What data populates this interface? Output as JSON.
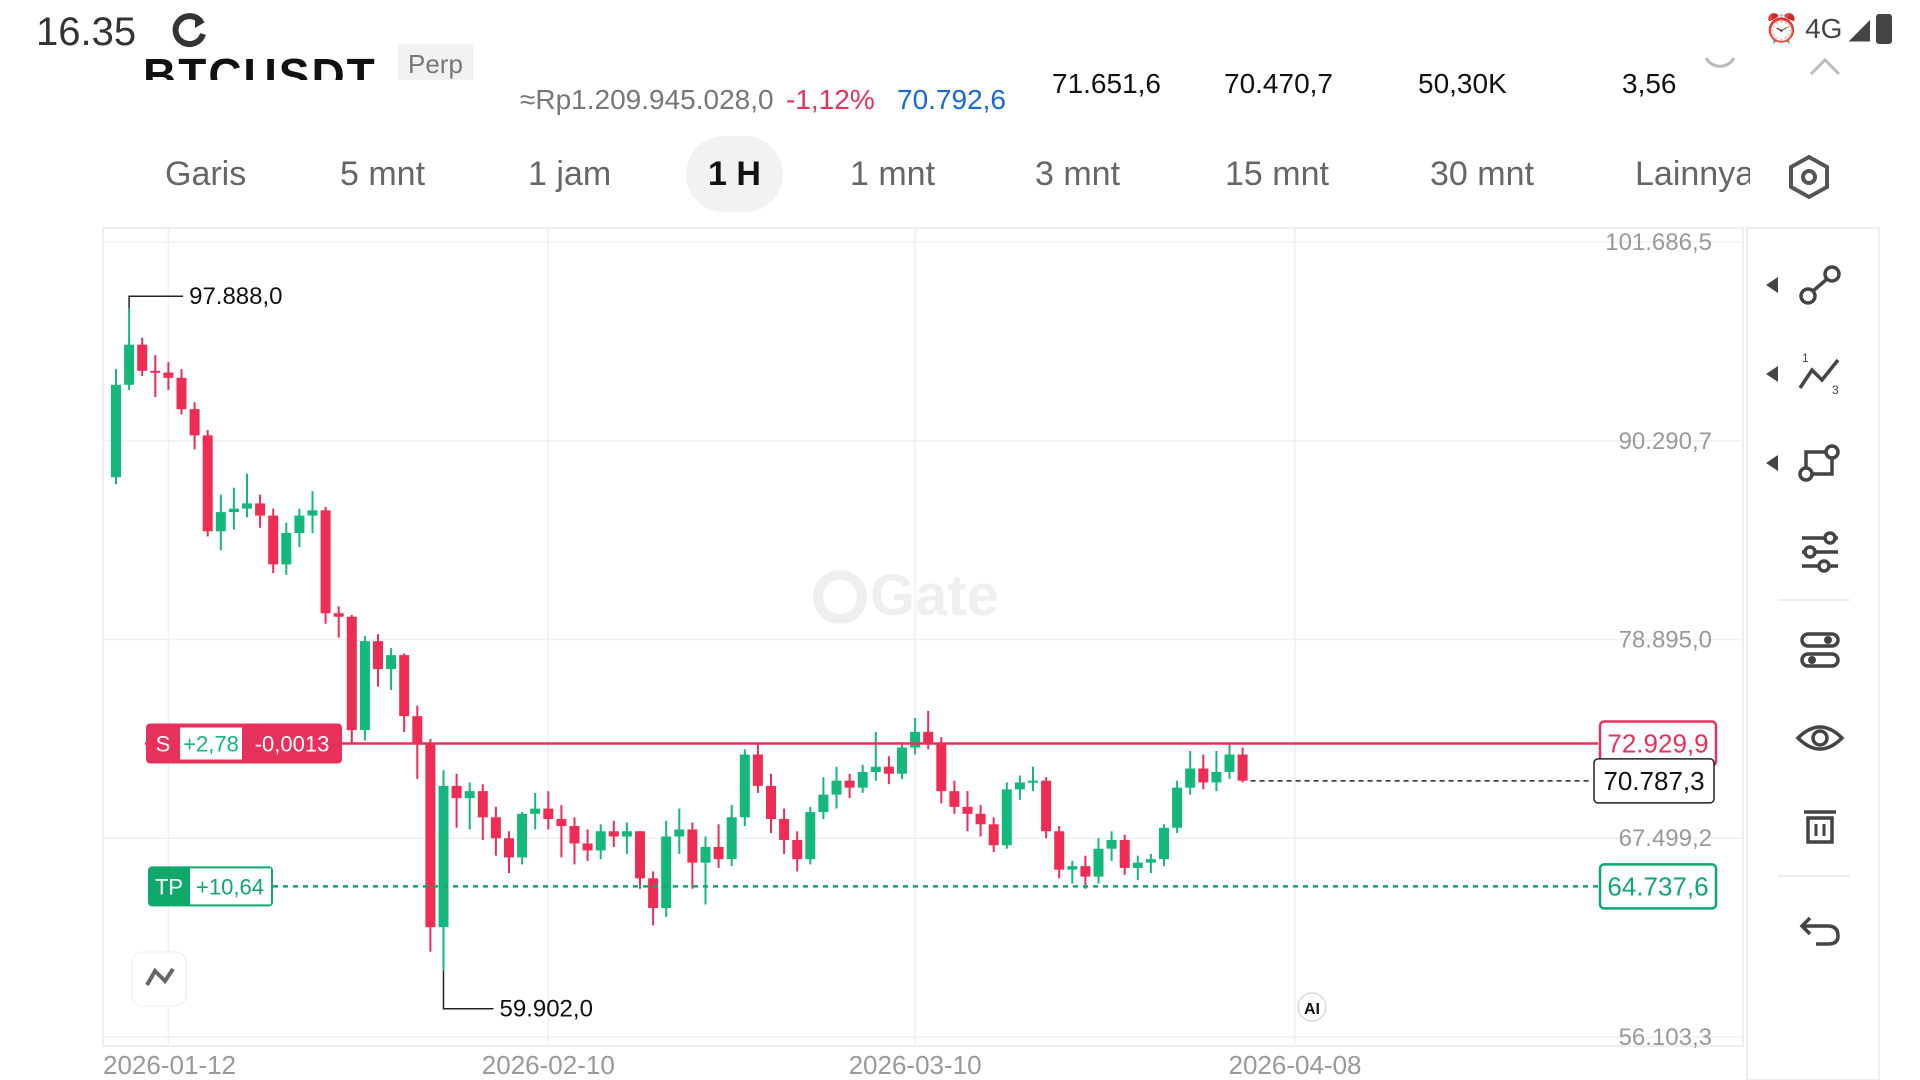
{
  "status_bar": {
    "time": "16.35",
    "network": "4G"
  },
  "header": {
    "pair": "BTCUSDT",
    "contract_type": "Perp",
    "idr_price": "≈Rp1.209.945.028,0",
    "change_pct": "-1,12%",
    "mark_price": "70.792,6",
    "high_24h": "71.651,6",
    "low_24h": "70.470,7",
    "volume": "50,30K",
    "turnover": "3,56"
  },
  "tabs": [
    {
      "label": "Garis"
    },
    {
      "label": "5 mnt"
    },
    {
      "label": "1 jam"
    },
    {
      "label": "1 H",
      "active": true
    },
    {
      "label": "1 mnt"
    },
    {
      "label": "3 mnt"
    },
    {
      "label": "15 mnt"
    },
    {
      "label": "30 mnt"
    },
    {
      "label": "Lainnya"
    }
  ],
  "toolbar_icons": [
    "trendline-icon",
    "wave-icon",
    "rectangle-tool-icon",
    "indicator-settings-icon",
    "layout-icon",
    "visibility-eye-icon",
    "trash-icon",
    "undo-icon"
  ],
  "chart_data": {
    "type": "candlestick",
    "watermark": "Gate",
    "y_ticks": [
      "101.686,5",
      "90.290,7",
      "78.895,0",
      "67.499,2",
      "56.103,3"
    ],
    "y_tick_values": [
      101686.5,
      90290.7,
      78895.0,
      67499.2,
      56103.3
    ],
    "ylim": [
      56103.3,
      101686.5
    ],
    "x_ticks": [
      "2026-01-12",
      "2026-02-10",
      "2026-03-10",
      "2026-04-08"
    ],
    "x_tick_index": [
      4,
      33,
      61,
      90
    ],
    "max_label": "97.888,0",
    "min_label": "59.902,0",
    "max_value": 97888.0,
    "min_value": 59902.0,
    "current_price": "70.787,3",
    "current_value": 70787.3,
    "short_position": {
      "label": "S",
      "pnl": "+2,78",
      "size": "-0,0013",
      "price": "72.929,9",
      "value": 72929.9
    },
    "take_profit": {
      "label": "TP",
      "pnl": "+10,64",
      "price": "64.737,6",
      "value": 64737.6
    },
    "ai_badge": "AI",
    "colors": {
      "up": "#13b87a",
      "down": "#ee2d55",
      "tp": "#0fa86b",
      "short": "#e8315a"
    },
    "candles": [
      [
        88200,
        94400,
        87800,
        93500
      ],
      [
        93500,
        97888,
        93200,
        95800
      ],
      [
        95800,
        96200,
        94000,
        94300
      ],
      [
        94300,
        95200,
        92800,
        94200
      ],
      [
        94200,
        94800,
        93200,
        93900
      ],
      [
        93900,
        94400,
        91800,
        92100
      ],
      [
        92100,
        92500,
        89800,
        90600
      ],
      [
        90600,
        90900,
        84800,
        85100
      ],
      [
        85100,
        87200,
        84000,
        86200
      ],
      [
        86200,
        87600,
        85200,
        86400
      ],
      [
        86400,
        88400,
        85900,
        86700
      ],
      [
        86700,
        87200,
        85300,
        86000
      ],
      [
        86000,
        86400,
        82700,
        83200
      ],
      [
        83200,
        85600,
        82600,
        85000
      ],
      [
        85000,
        86400,
        84200,
        86000
      ],
      [
        86000,
        87400,
        85000,
        86300
      ],
      [
        86300,
        86500,
        79800,
        80400
      ],
      [
        80400,
        80800,
        79000,
        80200
      ],
      [
        80200,
        80300,
        72900,
        73700
      ],
      [
        73700,
        79100,
        73100,
        78800
      ],
      [
        78800,
        79200,
        76200,
        77200
      ],
      [
        77200,
        78400,
        76000,
        78000
      ],
      [
        78000,
        78100,
        73600,
        74500
      ],
      [
        74500,
        75100,
        70900,
        72900
      ],
      [
        72900,
        73200,
        61000,
        62400
      ],
      [
        62400,
        71400,
        59902,
        70500
      ],
      [
        70500,
        71200,
        68100,
        69800
      ],
      [
        69800,
        70700,
        68000,
        70200
      ],
      [
        70200,
        70600,
        67400,
        68700
      ],
      [
        68700,
        69300,
        66500,
        67500
      ],
      [
        67500,
        67900,
        65500,
        66400
      ],
      [
        66400,
        69000,
        66000,
        68900
      ],
      [
        68900,
        70100,
        68000,
        69200
      ],
      [
        69200,
        70200,
        68000,
        68600
      ],
      [
        68600,
        69400,
        66400,
        68200
      ],
      [
        68200,
        68700,
        66000,
        67200
      ],
      [
        67200,
        68000,
        66200,
        66800
      ],
      [
        66800,
        68300,
        66300,
        67900
      ],
      [
        67900,
        68500,
        67000,
        67600
      ],
      [
        67600,
        68400,
        66600,
        67900
      ],
      [
        67900,
        67900,
        64600,
        65200
      ],
      [
        65200,
        65600,
        62500,
        63500
      ],
      [
        63500,
        68500,
        63000,
        67600
      ],
      [
        67600,
        69200,
        66600,
        68000
      ],
      [
        68000,
        68400,
        64600,
        66100
      ],
      [
        66100,
        67600,
        63700,
        67000
      ],
      [
        67000,
        68300,
        65800,
        66300
      ],
      [
        66300,
        69400,
        65900,
        68700
      ],
      [
        68700,
        72600,
        68200,
        72300
      ],
      [
        72300,
        72900,
        70100,
        70500
      ],
      [
        70500,
        71200,
        67800,
        68600
      ],
      [
        68600,
        69200,
        66600,
        67400
      ],
      [
        67400,
        67900,
        65600,
        66300
      ],
      [
        66300,
        69300,
        66000,
        69000
      ],
      [
        69000,
        71000,
        68600,
        70000
      ],
      [
        70000,
        71600,
        69200,
        70800
      ],
      [
        70800,
        71200,
        69800,
        70400
      ],
      [
        70400,
        71700,
        70100,
        71300
      ],
      [
        71300,
        73600,
        70800,
        71600
      ],
      [
        71600,
        72200,
        70600,
        71200
      ],
      [
        71200,
        73000,
        70900,
        72700
      ],
      [
        72700,
        74400,
        72300,
        73600
      ],
      [
        73600,
        74800,
        72600,
        72900
      ],
      [
        72900,
        73300,
        69500,
        70200
      ],
      [
        70200,
        70800,
        68900,
        69300
      ],
      [
        69300,
        70200,
        67900,
        68900
      ],
      [
        68900,
        69400,
        67600,
        68300
      ],
      [
        68300,
        68700,
        66700,
        67100
      ],
      [
        67100,
        70700,
        66900,
        70300
      ],
      [
        70300,
        71100,
        69700,
        70700
      ],
      [
        70700,
        71600,
        70200,
        70800
      ],
      [
        70800,
        71000,
        67500,
        67900
      ],
      [
        67900,
        68200,
        65200,
        65700
      ],
      [
        65700,
        66200,
        64900,
        65900
      ],
      [
        65900,
        66500,
        64600,
        65300
      ],
      [
        65300,
        67500,
        64900,
        66900
      ],
      [
        66900,
        67900,
        66200,
        67400
      ],
      [
        67400,
        67700,
        65400,
        65800
      ],
      [
        65800,
        66500,
        65100,
        66100
      ],
      [
        66100,
        66600,
        65500,
        66300
      ],
      [
        66300,
        68300,
        65900,
        68100
      ],
      [
        68100,
        70800,
        67800,
        70400
      ],
      [
        70400,
        72500,
        70000,
        71500
      ],
      [
        71500,
        72300,
        70300,
        70700
      ],
      [
        70700,
        72500,
        70200,
        71300
      ],
      [
        71300,
        72900,
        70900,
        72300
      ],
      [
        72300,
        72700,
        70700,
        70800
      ]
    ]
  }
}
